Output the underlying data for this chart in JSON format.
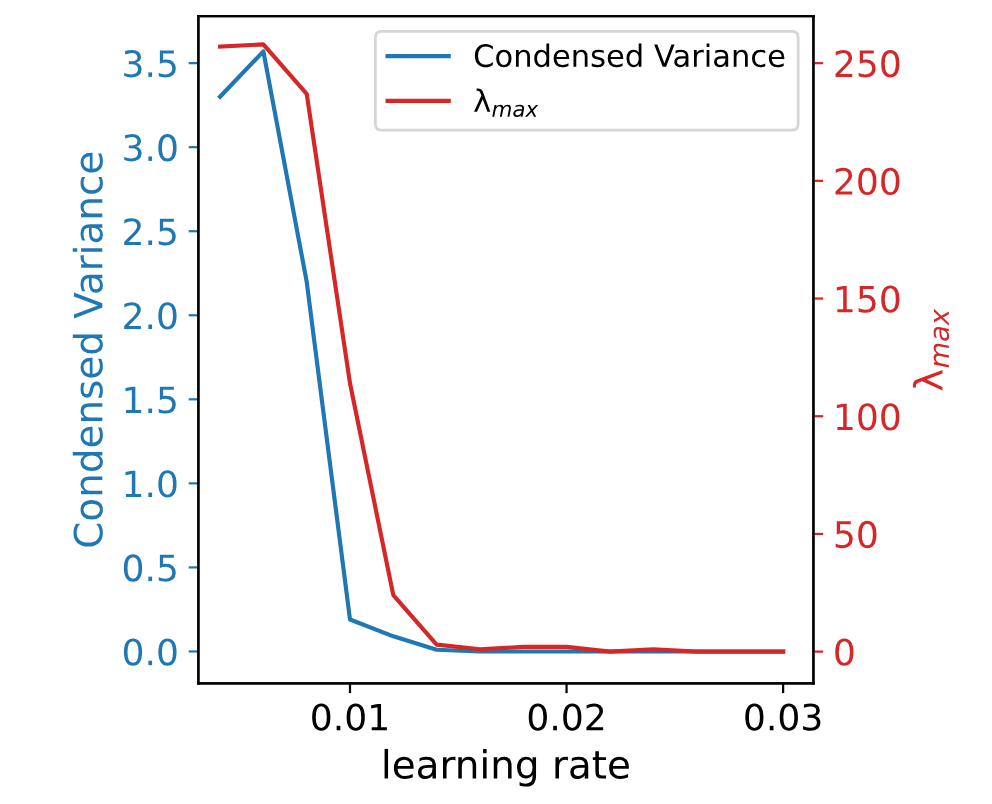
{
  "chart_data": {
    "type": "line",
    "xlabel": "learning rate",
    "ylabel": "Condensed Variance",
    "y2label": "λ$_{max}$",
    "x": [
      0.004,
      0.006,
      0.008,
      0.01,
      0.012,
      0.014,
      0.016,
      0.018,
      0.02,
      0.022,
      0.024,
      0.026,
      0.028,
      0.03
    ],
    "series": [
      {
        "name": "Condensed Variance",
        "color": "#1f77b4",
        "values": [
          3.3,
          3.57,
          2.2,
          0.19,
          0.09,
          0.01,
          0.0,
          0.0,
          0.0,
          0.0,
          0.0,
          0.0,
          0.0,
          0.0
        ]
      },
      {
        "name": "λ$_{max}$",
        "color": "#d62728",
        "axis": "y2",
        "values": [
          257,
          258,
          237,
          114,
          24,
          3,
          1,
          2,
          2,
          0,
          1,
          0,
          0,
          0
        ]
      }
    ],
    "xlim": [
      0.003,
      0.0314
    ],
    "xticks": [
      0.01,
      0.02,
      0.03
    ],
    "ylim": [
      -0.19,
      3.78
    ],
    "yticks": [
      {
        "value": 0,
        "label": "0.0"
      },
      0.5,
      {
        "value": 1,
        "label": "1.0"
      },
      1.5,
      {
        "value": 2,
        "label": "2.0"
      },
      2.5,
      {
        "value": 3,
        "label": "3.0"
      },
      3.5
    ],
    "y2lim": [
      -13.5,
      270
    ],
    "y2ticks": [
      0,
      50,
      100,
      150,
      200,
      250
    ],
    "legend": "top right",
    "grid": false
  }
}
